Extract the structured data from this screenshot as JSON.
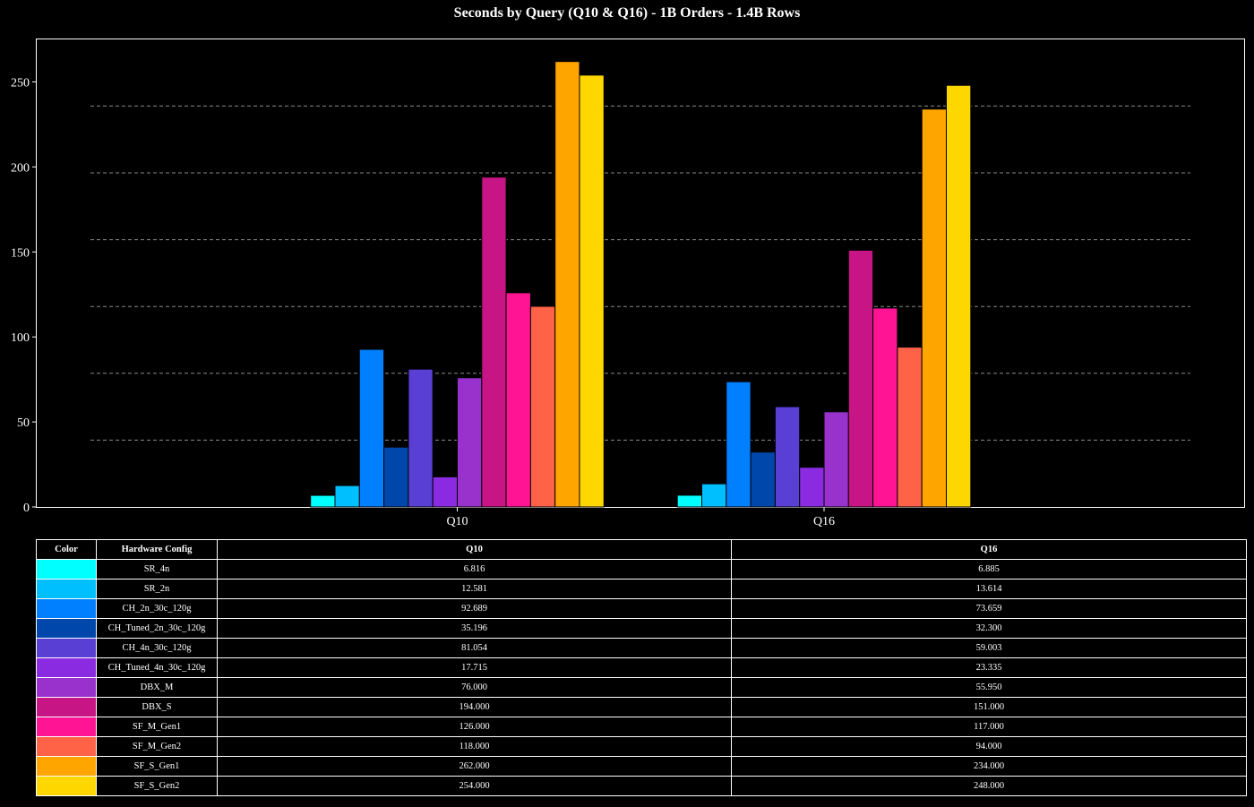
{
  "chart_data": {
    "type": "bar",
    "title": "Seconds by Query (Q10 & Q16) - 1B Orders - 1.4B Rows",
    "xlabel": "",
    "ylabel": "",
    "categories": [
      "Q10",
      "Q16"
    ],
    "ylim": [
      0,
      275
    ],
    "yticks": [
      0,
      50,
      100,
      150,
      200,
      250
    ],
    "gridlines": [
      39.3,
      78.6,
      117.9,
      157.2,
      196.5,
      235.8
    ],
    "grid": "horizontal dashed",
    "series": [
      {
        "name": "SR_4n",
        "color": "#00FFFF",
        "values": [
          6.816,
          6.885
        ]
      },
      {
        "name": "SR_2n",
        "color": "#00BFFF",
        "values": [
          12.581,
          13.614
        ]
      },
      {
        "name": "CH_2n_30c_120g",
        "color": "#007FFF",
        "values": [
          92.689,
          73.659
        ]
      },
      {
        "name": "CH_Tuned_2n_30c_120g",
        "color": "#0047AB",
        "values": [
          35.196,
          32.3
        ]
      },
      {
        "name": "CH_4n_30c_120g",
        "color": "#5A3FD4",
        "values": [
          81.054,
          59.003
        ]
      },
      {
        "name": "CH_Tuned_4n_30c_120g",
        "color": "#8A2BE2",
        "values": [
          17.715,
          23.335
        ]
      },
      {
        "name": "DBX_M",
        "color": "#9932CC",
        "values": [
          76.0,
          55.95
        ]
      },
      {
        "name": "DBX_S",
        "color": "#C71585",
        "values": [
          194.0,
          151.0
        ]
      },
      {
        "name": "SF_M_Gen1",
        "color": "#FF1493",
        "values": [
          126.0,
          117.0
        ]
      },
      {
        "name": "SF_M_Gen2",
        "color": "#FF6347",
        "values": [
          118.0,
          94.0
        ]
      },
      {
        "name": "SF_S_Gen1",
        "color": "#FFA500",
        "values": [
          262.0,
          234.0
        ]
      },
      {
        "name": "SF_S_Gen2",
        "color": "#FFD700",
        "values": [
          254.0,
          248.0
        ]
      }
    ]
  },
  "table": {
    "headers": [
      "Color",
      "Hardware Config",
      "Q10",
      "Q16"
    ],
    "rows": [
      [
        "SR_4n",
        "6.816",
        "6.885"
      ],
      [
        "SR_2n",
        "12.581",
        "13.614"
      ],
      [
        "CH_2n_30c_120g",
        "92.689",
        "73.659"
      ],
      [
        "CH_Tuned_2n_30c_120g",
        "35.196",
        "32.300"
      ],
      [
        "CH_4n_30c_120g",
        "81.054",
        "59.003"
      ],
      [
        "CH_Tuned_4n_30c_120g",
        "17.715",
        "23.335"
      ],
      [
        "DBX_M",
        "76.000",
        "55.950"
      ],
      [
        "DBX_S",
        "194.000",
        "151.000"
      ],
      [
        "SF_M_Gen1",
        "126.000",
        "117.000"
      ],
      [
        "SF_M_Gen2",
        "118.000",
        "94.000"
      ],
      [
        "SF_S_Gen1",
        "262.000",
        "234.000"
      ],
      [
        "SF_S_Gen2",
        "254.000",
        "248.000"
      ]
    ]
  }
}
